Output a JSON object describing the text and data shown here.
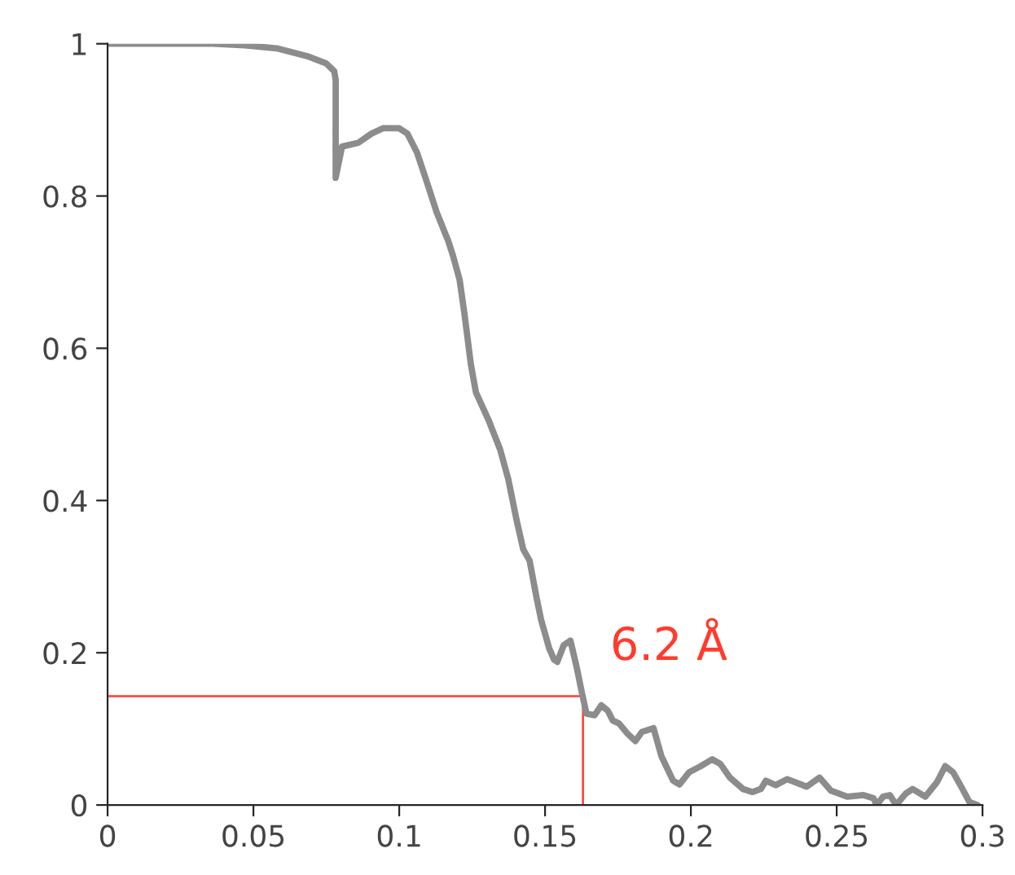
{
  "chart_data": {
    "type": "line",
    "x": [
      0,
      0.036,
      0.047,
      0.058,
      0.069,
      0.075,
      0.0777,
      0.0782,
      0.0782,
      0.0804,
      0.086,
      0.0905,
      0.0944,
      0.1,
      0.1028,
      0.1061,
      0.1095,
      0.1128,
      0.1168,
      0.1184,
      0.1207,
      0.1223,
      0.1246,
      0.1263,
      0.1307,
      0.1346,
      0.1374,
      0.1402,
      0.1425,
      0.1447,
      0.147,
      0.1486,
      0.1514,
      0.1531,
      0.1542,
      0.1564,
      0.1587,
      0.1609,
      0.1626,
      0.1642,
      0.167,
      0.1693,
      0.1715,
      0.1732,
      0.1754,
      0.1782,
      0.181,
      0.1832,
      0.1872,
      0.1899,
      0.1939,
      0.1961,
      0.1994,
      0.2034,
      0.2073,
      0.2101,
      0.2134,
      0.2179,
      0.2212,
      0.224,
      0.2257,
      0.2291,
      0.233,
      0.2358,
      0.2397,
      0.2441,
      0.248,
      0.2536,
      0.2592,
      0.2626,
      0.2637,
      0.2659,
      0.2682,
      0.2704,
      0.2737,
      0.276,
      0.2804,
      0.2844,
      0.2872,
      0.2899,
      0.2927,
      0.2955,
      0.2983
    ],
    "series": [
      {
        "color": "#8c8c8c",
        "values": [
          1,
          1,
          0.998,
          0.994,
          0.983,
          0.974,
          0.964,
          0.953,
          0.824,
          0.865,
          0.87,
          0.882,
          0.889,
          0.889,
          0.882,
          0.857,
          0.818,
          0.779,
          0.741,
          0.722,
          0.69,
          0.647,
          0.578,
          0.542,
          0.505,
          0.467,
          0.428,
          0.375,
          0.336,
          0.321,
          0.274,
          0.244,
          0.206,
          0.191,
          0.188,
          0.21,
          0.216,
          0.18,
          0.148,
          0.12,
          0.118,
          0.131,
          0.124,
          0.111,
          0.107,
          0.094,
          0.084,
          0.096,
          0.101,
          0.064,
          0.032,
          0.027,
          0.043,
          0.051,
          0.06,
          0.054,
          0.036,
          0.021,
          0.017,
          0.021,
          0.032,
          0.026,
          0.034,
          0.03,
          0.024,
          0.036,
          0.019,
          0.011,
          0.013,
          0.009,
          0,
          0.011,
          0.013,
          0,
          0.015,
          0.021,
          0.011,
          0.03,
          0.051,
          0.043,
          0.024,
          0.004,
          0
        ]
      }
    ],
    "xlim": [
      0,
      0.3
    ],
    "ylim": [
      0,
      1
    ],
    "xticks": [
      0,
      0.05,
      0.1,
      0.15,
      0.2,
      0.25,
      0.3
    ],
    "yticks": [
      0,
      0.2,
      0.4,
      0.6,
      0.8,
      1
    ],
    "ref_lines": [
      {
        "axis": "y",
        "value": 0.143,
        "color": "#ff3b30"
      },
      {
        "axis": "x",
        "value": 0.163,
        "color": "#ff3b30"
      }
    ],
    "annotations": [
      {
        "text": "6.2 Å",
        "x": 0.163,
        "y": 0.143
      }
    ],
    "grid": false
  }
}
